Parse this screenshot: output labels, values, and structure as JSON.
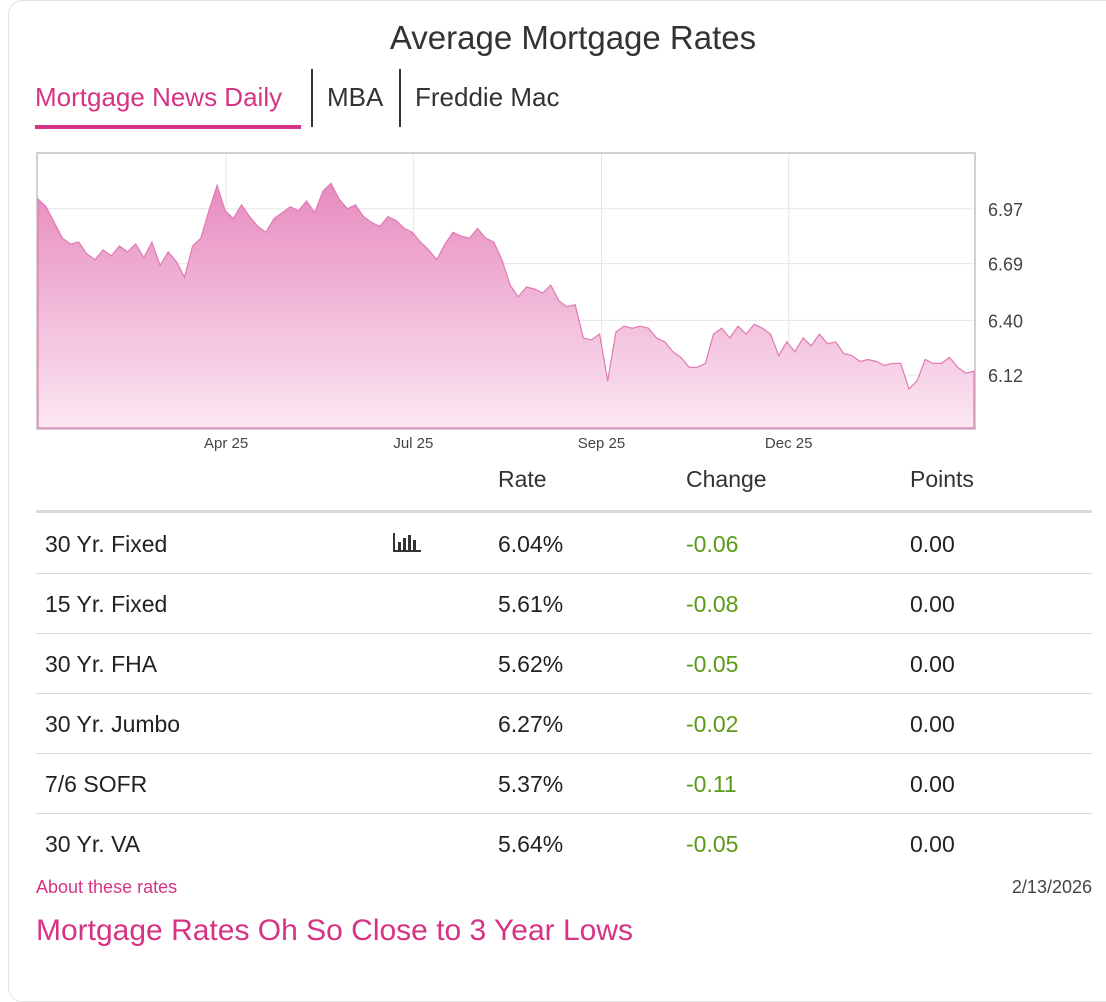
{
  "widget": {
    "title": "Average Mortgage Rates",
    "tabs": [
      {
        "label": "Mortgage News Daily",
        "active": true
      },
      {
        "label": "MBA",
        "active": false
      },
      {
        "label": "Freddie Mac",
        "active": false
      }
    ],
    "accent_color": "#d63384",
    "change_color": "#5a9a16"
  },
  "chart_data": {
    "type": "area",
    "y_ticks": [
      "6.97",
      "6.69",
      "6.40",
      "6.12"
    ],
    "x_ticks": [
      "Apr 25",
      "Jul 25",
      "Sep 25",
      "Dec 25"
    ],
    "ylim": [
      5.85,
      7.25
    ],
    "grid": true,
    "fill_color": "#e78bbf",
    "values": [
      7.02,
      6.98,
      6.9,
      6.82,
      6.79,
      6.8,
      6.74,
      6.71,
      6.76,
      6.73,
      6.78,
      6.75,
      6.79,
      6.72,
      6.8,
      6.68,
      6.75,
      6.7,
      6.62,
      6.78,
      6.82,
      6.96,
      7.09,
      6.96,
      6.92,
      6.99,
      6.93,
      6.88,
      6.85,
      6.92,
      6.95,
      6.98,
      6.96,
      7.01,
      6.95,
      7.06,
      7.1,
      7.02,
      6.97,
      6.99,
      6.93,
      6.9,
      6.88,
      6.93,
      6.91,
      6.87,
      6.85,
      6.8,
      6.76,
      6.71,
      6.79,
      6.85,
      6.83,
      6.82,
      6.87,
      6.82,
      6.8,
      6.71,
      6.58,
      6.52,
      6.57,
      6.56,
      6.54,
      6.58,
      6.5,
      6.47,
      6.48,
      6.31,
      6.3,
      6.33,
      6.09,
      6.34,
      6.37,
      6.36,
      6.37,
      6.36,
      6.31,
      6.29,
      6.24,
      6.21,
      6.16,
      6.16,
      6.18,
      6.33,
      6.36,
      6.31,
      6.37,
      6.33,
      6.38,
      6.36,
      6.33,
      6.22,
      6.29,
      6.24,
      6.31,
      6.27,
      6.33,
      6.28,
      6.29,
      6.23,
      6.22,
      6.19,
      6.2,
      6.19,
      6.17,
      6.18,
      6.18,
      6.05,
      6.09,
      6.2,
      6.18,
      6.18,
      6.21,
      6.16,
      6.13,
      6.14
    ]
  },
  "table": {
    "headers": {
      "name": "",
      "rate": "Rate",
      "change": "Change",
      "points": "Points"
    },
    "rows": [
      {
        "name": "30 Yr. Fixed",
        "rate": "6.04%",
        "change": "-0.06",
        "points": "0.00",
        "chart_icon": true
      },
      {
        "name": "15 Yr. Fixed",
        "rate": "5.61%",
        "change": "-0.08",
        "points": "0.00"
      },
      {
        "name": "30 Yr. FHA",
        "rate": "5.62%",
        "change": "-0.05",
        "points": "0.00"
      },
      {
        "name": "30 Yr. Jumbo",
        "rate": "6.27%",
        "change": "-0.02",
        "points": "0.00"
      },
      {
        "name": "7/6 SOFR",
        "rate": "5.37%",
        "change": "-0.11",
        "points": "0.00"
      },
      {
        "name": "30 Yr. VA",
        "rate": "5.64%",
        "change": "-0.05",
        "points": "0.00"
      }
    ],
    "chart_icon_name": "bar-chart-icon"
  },
  "footer": {
    "about_link": "About these rates",
    "date": "2/13/2026",
    "headline": "Mortgage Rates Oh So Close to 3 Year Lows"
  }
}
